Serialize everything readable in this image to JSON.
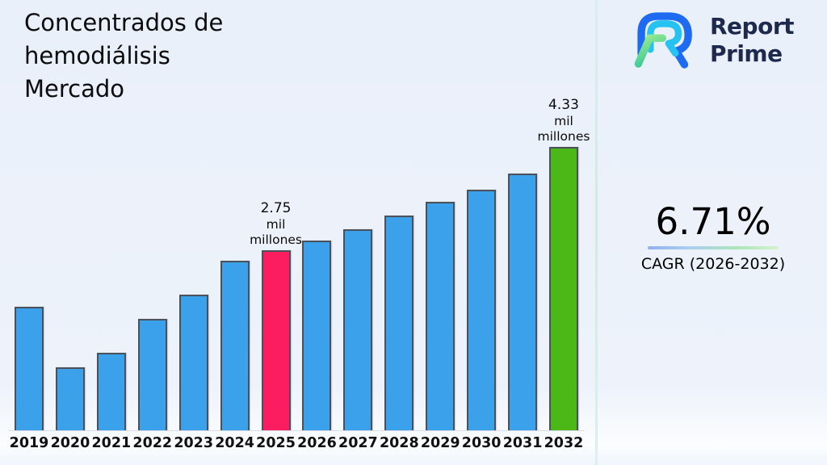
{
  "page": {
    "background": "#edf2fb",
    "divider_color": "#d3ecdf"
  },
  "header": {
    "title": "Concentrados de\nhemodiálisis\nMercado"
  },
  "logo": {
    "line1": "Report",
    "line2": "Prime",
    "text_color": "#1e2a4d",
    "mark_colors": {
      "outer": "#1e6bf2",
      "inner": "#26c2f2",
      "accent_light": "#95ea8e",
      "accent_teal": "#37c598"
    }
  },
  "cagr": {
    "value": "6.71%",
    "label": "CAGR (2026-2032)"
  },
  "chart_data": {
    "type": "bar",
    "title": "Concentrados de hemodiálisis Mercado",
    "unit": "mil millones",
    "categories": [
      "2019",
      "2020",
      "2021",
      "2022",
      "2023",
      "2024",
      "2025",
      "2026",
      "2027",
      "2028",
      "2029",
      "2030",
      "2031",
      "2032"
    ],
    "values": [
      1.89,
      0.96,
      1.18,
      1.7,
      2.07,
      2.59,
      2.75,
      2.9,
      3.07,
      3.28,
      3.49,
      3.68,
      3.92,
      4.33
    ],
    "ylim": [
      0,
      4.6
    ],
    "grid": false,
    "legend": false,
    "xlabel": "",
    "ylabel": "",
    "bar_default_color": "#3ba1ea",
    "bar_border_color": "#4a5158",
    "highlights": [
      {
        "category": "2025",
        "color": "#fb1d60",
        "annotation_lines": [
          "2.75",
          "mil",
          "millones"
        ]
      },
      {
        "category": "2032",
        "color": "#4cb818",
        "annotation_lines": [
          "4.33",
          "mil",
          "millones"
        ]
      }
    ]
  }
}
